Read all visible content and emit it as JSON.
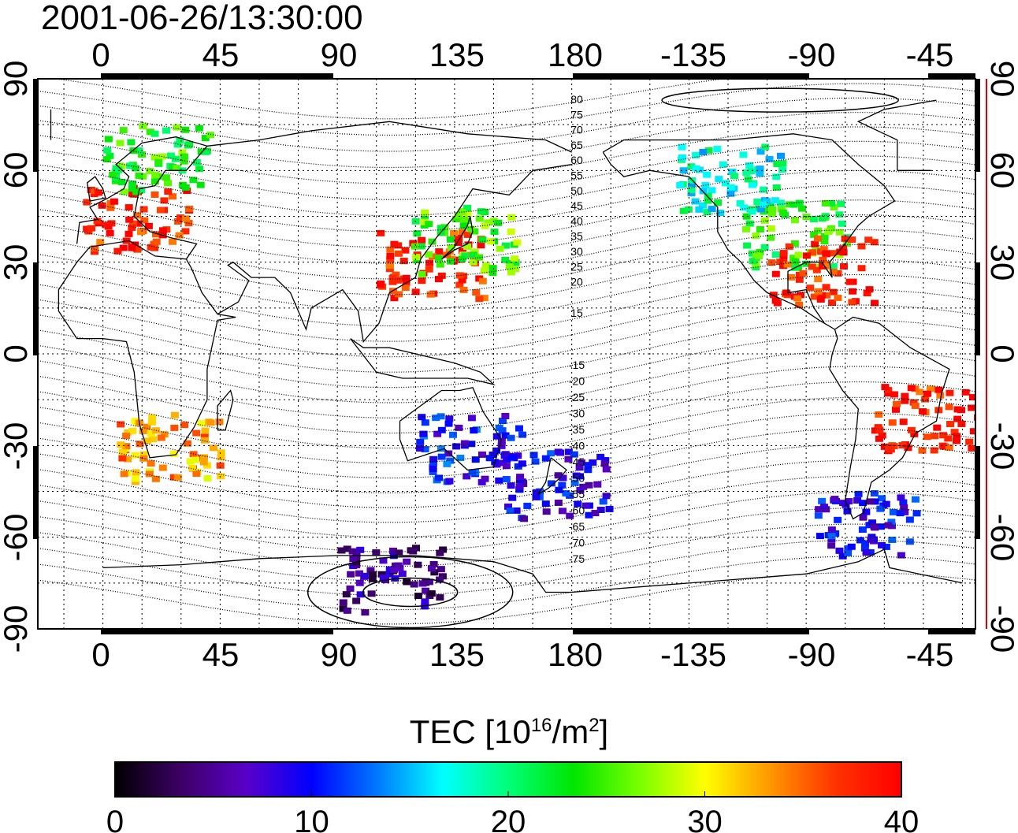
{
  "title": "2001-06-26/13:30:00",
  "map": {
    "projection": "equirectangular",
    "longitude_center": 155,
    "lon_ticks_top": [
      "0",
      "45",
      "90",
      "135",
      "180",
      "-135",
      "-90",
      "-45"
    ],
    "lon_ticks_bottom": [
      "0",
      "45",
      "90",
      "135",
      "180",
      "-135",
      "-90",
      "-45"
    ],
    "lat_ticks_left": [
      "90",
      "60",
      "30",
      "0",
      "-30",
      "-60",
      "-90"
    ],
    "lat_ticks_right": [
      "90",
      "60",
      "30",
      "0",
      "-30",
      "-60",
      "-90"
    ],
    "grid": true,
    "contour_labels_north": [
      "80",
      "75",
      "70",
      "65",
      "60",
      "55",
      "50",
      "45",
      "40",
      "35",
      "30",
      "25",
      "20",
      "15"
    ],
    "contour_labels_south": [
      "-15",
      "-20",
      "-25",
      "-30",
      "-35",
      "-40",
      "-45",
      "-50",
      "-55",
      "-60",
      "-65",
      "-70",
      "-75"
    ],
    "coastline_color": "#000000"
  },
  "colorbar": {
    "label": "TEC  [10",
    "label_exp": "16",
    "label_unit": "/m",
    "label_unit_exp": "2",
    "label_close": "]",
    "min": 0,
    "max": 40,
    "ticks": [
      "0",
      "10",
      "20",
      "30",
      "40"
    ],
    "colormap": [
      "#000000",
      "#3c0064",
      "#5a00c8",
      "#0000ff",
      "#0078ff",
      "#00ffff",
      "#00ff78",
      "#00e600",
      "#78ff00",
      "#ffff00",
      "#ff9600",
      "#ff3200",
      "#ff0000"
    ]
  },
  "tec_regions": [
    {
      "name": "europe",
      "lon": 12,
      "lat": 45,
      "tec": 38
    },
    {
      "name": "scandinavia",
      "lon": 20,
      "lat": 65,
      "tec": 24
    },
    {
      "name": "east-asia",
      "lon": 125,
      "lat": 30,
      "tec": 38
    },
    {
      "name": "japan",
      "lon": 138,
      "lat": 38,
      "tec": 25
    },
    {
      "name": "north-america",
      "lon": -95,
      "lat": 40,
      "tec": 24
    },
    {
      "name": "canada",
      "lon": -120,
      "lat": 58,
      "tec": 18
    },
    {
      "name": "gulf",
      "lon": -85,
      "lat": 28,
      "tec": 38
    },
    {
      "name": "brazil",
      "lon": -45,
      "lat": -20,
      "tec": 38
    },
    {
      "name": "australia",
      "lon": 140,
      "lat": -30,
      "tec": 10
    },
    {
      "name": "new-zealand",
      "lon": 173,
      "lat": -42,
      "tec": 9
    },
    {
      "name": "antarctica",
      "lon": 110,
      "lat": -73,
      "tec": 5
    },
    {
      "name": "south-africa",
      "lon": 25,
      "lat": -30,
      "tec": 33
    },
    {
      "name": "patagonia",
      "lon": -68,
      "lat": -55,
      "tec": 9
    }
  ]
}
